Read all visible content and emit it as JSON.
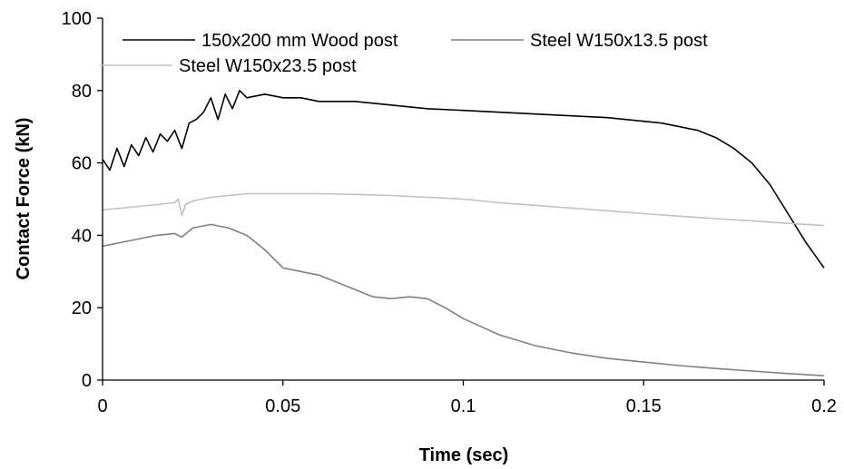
{
  "chart_data": {
    "type": "line",
    "xlabel": "Time (sec)",
    "ylabel": "Contact Force (kN)",
    "xlim": [
      0,
      0.2
    ],
    "ylim": [
      0,
      100
    ],
    "xticks": [
      0,
      0.05,
      0.1,
      0.15,
      0.2
    ],
    "xtick_labels": [
      "0",
      "0.05",
      "0.1",
      "0.15",
      "0.2"
    ],
    "yticks": [
      0,
      20,
      40,
      60,
      80,
      100
    ],
    "ytick_labels": [
      "0",
      "20",
      "40",
      "60",
      "80",
      "100"
    ],
    "grid": false,
    "legend_position": "top",
    "series": [
      {
        "name": "150x200 mm Wood post",
        "color": "#000000",
        "x": [
          0,
          0.002,
          0.004,
          0.006,
          0.008,
          0.01,
          0.012,
          0.014,
          0.016,
          0.018,
          0.02,
          0.022,
          0.024,
          0.026,
          0.028,
          0.03,
          0.032,
          0.034,
          0.036,
          0.038,
          0.04,
          0.045,
          0.05,
          0.055,
          0.06,
          0.065,
          0.07,
          0.08,
          0.09,
          0.1,
          0.11,
          0.12,
          0.13,
          0.14,
          0.15,
          0.155,
          0.16,
          0.165,
          0.17,
          0.175,
          0.18,
          0.185,
          0.19,
          0.195,
          0.2
        ],
        "values": [
          61,
          58,
          64,
          59,
          65,
          62,
          67,
          63,
          68,
          66,
          69,
          64,
          71,
          72,
          74,
          78,
          72,
          79,
          75,
          80,
          78,
          79,
          78,
          78,
          77,
          77,
          77,
          76,
          75,
          74.5,
          74,
          73.5,
          73,
          72.5,
          71.5,
          71,
          70,
          69,
          67,
          64,
          60,
          54,
          46,
          38,
          31
        ]
      },
      {
        "name": "Steel W150x13.5 post",
        "color": "#808080",
        "x": [
          0,
          0.005,
          0.01,
          0.015,
          0.02,
          0.022,
          0.025,
          0.03,
          0.035,
          0.04,
          0.045,
          0.05,
          0.055,
          0.06,
          0.065,
          0.07,
          0.075,
          0.08,
          0.085,
          0.09,
          0.095,
          0.1,
          0.11,
          0.12,
          0.13,
          0.14,
          0.15,
          0.16,
          0.17,
          0.18,
          0.19,
          0.2
        ],
        "values": [
          37,
          38,
          39,
          40,
          40.5,
          39.5,
          42,
          43,
          42,
          40,
          36,
          31,
          30,
          29,
          27,
          25,
          23,
          22.5,
          23,
          22.5,
          20,
          17,
          12.5,
          9.5,
          7.5,
          6,
          5,
          4,
          3.2,
          2.5,
          1.8,
          1.2
        ]
      },
      {
        "name": "Steel W150x23.5 post",
        "color": "#c0c0c0",
        "x": [
          0,
          0.005,
          0.01,
          0.015,
          0.02,
          0.021,
          0.022,
          0.023,
          0.025,
          0.03,
          0.035,
          0.04,
          0.05,
          0.06,
          0.07,
          0.08,
          0.09,
          0.1,
          0.11,
          0.12,
          0.13,
          0.14,
          0.15,
          0.16,
          0.17,
          0.18,
          0.19,
          0.2
        ],
        "values": [
          47,
          47.5,
          48,
          48.5,
          49,
          50,
          45.5,
          48.5,
          49.5,
          50.5,
          51,
          51.5,
          51.5,
          51.5,
          51.3,
          51,
          50.5,
          50,
          49,
          48.3,
          47.5,
          46.8,
          46,
          45.3,
          44.6,
          44,
          43.3,
          42.7
        ]
      }
    ]
  }
}
